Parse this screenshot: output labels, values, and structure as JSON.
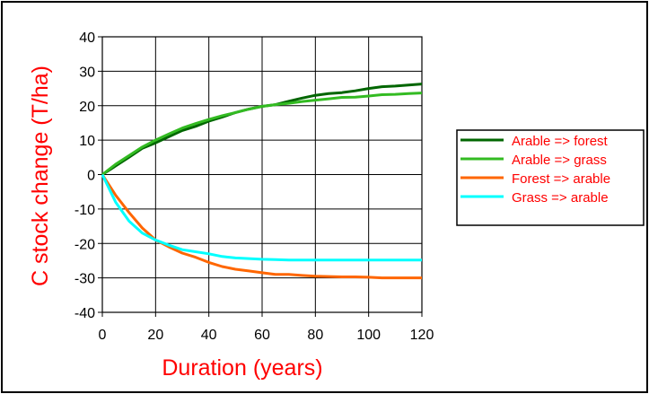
{
  "chart_data": {
    "type": "line",
    "title": "",
    "xlabel": "Duration (years)",
    "ylabel": "C stock change (T/ha)",
    "label_color": "#ff0000",
    "xlim": [
      0,
      120
    ],
    "ylim": [
      -40,
      40
    ],
    "x_ticks": [
      "0",
      "20",
      "40",
      "60",
      "80",
      "100",
      "120"
    ],
    "y_ticks": [
      "40",
      "30",
      "20",
      "10",
      "0",
      "-10",
      "-20",
      "-30",
      "-40"
    ],
    "grid": true,
    "legend_position": "right",
    "series": [
      {
        "name": "Arable => forest",
        "color": "#006600",
        "x": [
          0,
          5,
          10,
          15,
          20,
          25,
          30,
          35,
          40,
          45,
          50,
          55,
          60,
          65,
          70,
          75,
          80,
          85,
          90,
          95,
          100,
          105,
          110,
          115,
          120
        ],
        "y": [
          0,
          2.5,
          5,
          7.6,
          9.2,
          11,
          12.8,
          14,
          15.5,
          16.7,
          18,
          19,
          19.8,
          20.3,
          21.3,
          22.2,
          23,
          23.5,
          23.8,
          24.3,
          25,
          25.5,
          25.7,
          26,
          26.3
        ]
      },
      {
        "name": "Arable => grass",
        "color": "#33bb22",
        "x": [
          0,
          5,
          10,
          15,
          20,
          25,
          30,
          35,
          40,
          45,
          50,
          55,
          60,
          65,
          70,
          75,
          80,
          85,
          90,
          95,
          100,
          105,
          110,
          115,
          120
        ],
        "y": [
          0,
          3,
          5.5,
          8,
          10,
          11.8,
          13.5,
          14.8,
          16,
          17.1,
          18,
          19,
          19.8,
          20.3,
          20.7,
          21.2,
          21.6,
          22,
          22.4,
          22.5,
          22.8,
          23.2,
          23.3,
          23.5,
          23.7
        ]
      },
      {
        "name": "Forest => arable",
        "color": "#ff6600",
        "x": [
          0,
          5,
          10,
          15,
          20,
          25,
          30,
          35,
          40,
          45,
          50,
          55,
          60,
          65,
          70,
          75,
          80,
          85,
          90,
          95,
          100,
          105,
          110,
          115,
          120
        ],
        "y": [
          0,
          -6,
          -11,
          -15.5,
          -19,
          -21,
          -22.8,
          -24,
          -25.5,
          -26.7,
          -27.5,
          -28,
          -28.5,
          -29,
          -29,
          -29.3,
          -29.5,
          -29.6,
          -29.7,
          -29.7,
          -29.8,
          -30,
          -30,
          -30,
          -30
        ]
      },
      {
        "name": "Grass => arable",
        "color": "#00ffff",
        "x": [
          0,
          5,
          10,
          15,
          20,
          25,
          30,
          35,
          40,
          45,
          50,
          55,
          60,
          65,
          70,
          75,
          80,
          85,
          90,
          95,
          100,
          105,
          110,
          115,
          120
        ],
        "y": [
          0,
          -8,
          -13.5,
          -17,
          -19,
          -20.5,
          -21.8,
          -22.4,
          -23,
          -23.8,
          -24.2,
          -24.4,
          -24.6,
          -24.7,
          -24.8,
          -24.8,
          -24.8,
          -24.8,
          -24.8,
          -24.8,
          -24.8,
          -24.8,
          -24.8,
          -24.8,
          -24.8
        ]
      }
    ]
  }
}
